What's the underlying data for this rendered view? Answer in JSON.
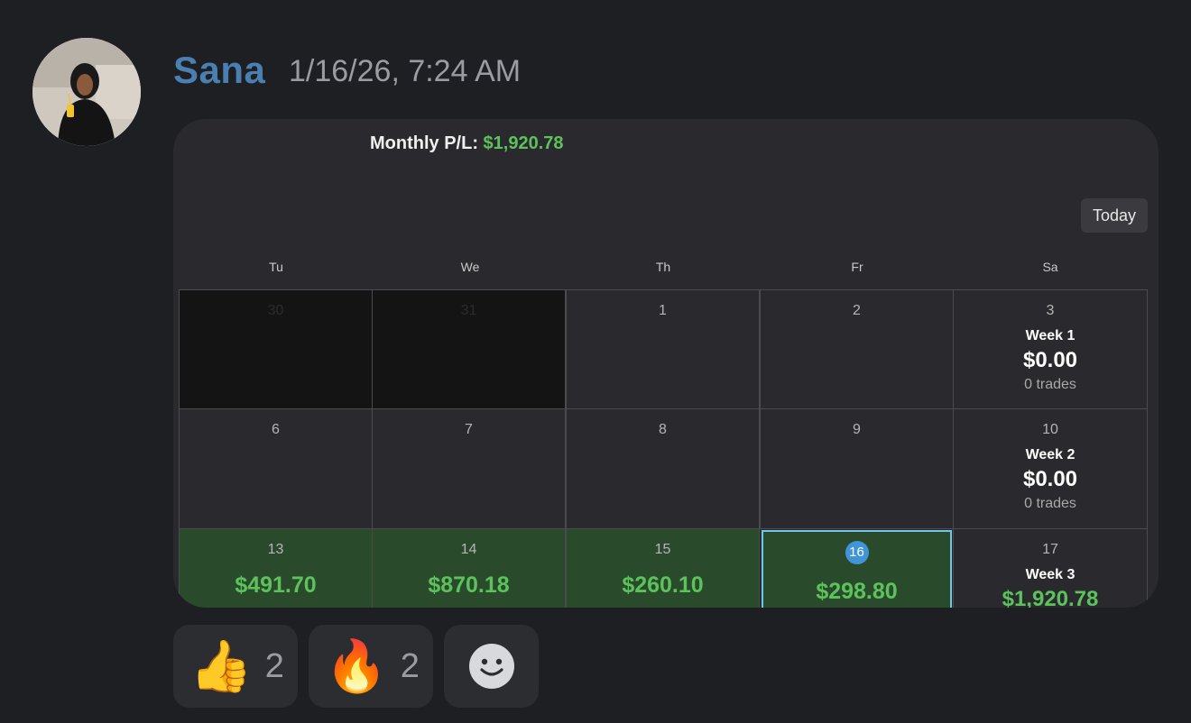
{
  "message": {
    "username": "Sana",
    "timestamp": "1/16/26, 7:24 AM"
  },
  "calendar": {
    "monthly_label": "Monthly P/L:",
    "monthly_value": "$1,920.78",
    "today_label": "Today",
    "weekdays": [
      "Tu",
      "We",
      "Th",
      "Fr",
      "Sa"
    ],
    "rows": [
      {
        "days": [
          {
            "num": "30",
            "style": "dim"
          },
          {
            "num": "31",
            "style": "dim"
          },
          {
            "num": "1",
            "style": "normal"
          },
          {
            "num": "2",
            "style": "normal"
          }
        ],
        "week": {
          "num": "3",
          "label": "Week 1",
          "amount": "$0.00",
          "trades": "0 trades"
        }
      },
      {
        "days": [
          {
            "num": "6",
            "style": "normal"
          },
          {
            "num": "7",
            "style": "normal"
          },
          {
            "num": "8",
            "style": "normal"
          },
          {
            "num": "9",
            "style": "normal"
          }
        ],
        "week": {
          "num": "10",
          "label": "Week 2",
          "amount": "$0.00",
          "trades": "0 trades"
        }
      },
      {
        "days": [
          {
            "num": "13",
            "style": "green",
            "amount": "$491.70"
          },
          {
            "num": "14",
            "style": "green",
            "amount": "$870.18"
          },
          {
            "num": "15",
            "style": "green",
            "amount": "$260.10"
          },
          {
            "num": "16",
            "style": "today",
            "amount": "$298.80"
          }
        ],
        "week": {
          "num": "17",
          "label": "Week 3",
          "amount": "$1,920.78",
          "trades": ""
        }
      }
    ]
  },
  "reactions": [
    {
      "emoji": "👍",
      "count": "2",
      "icon": "thumbs-up-icon"
    },
    {
      "emoji": "🔥",
      "count": "2",
      "icon": "fire-icon"
    },
    {
      "icon": "add-reaction-icon"
    }
  ],
  "colors": {
    "accent_green": "#5cc25c",
    "username": "#4a7fb0",
    "today_highlight": "#3f95d8"
  }
}
